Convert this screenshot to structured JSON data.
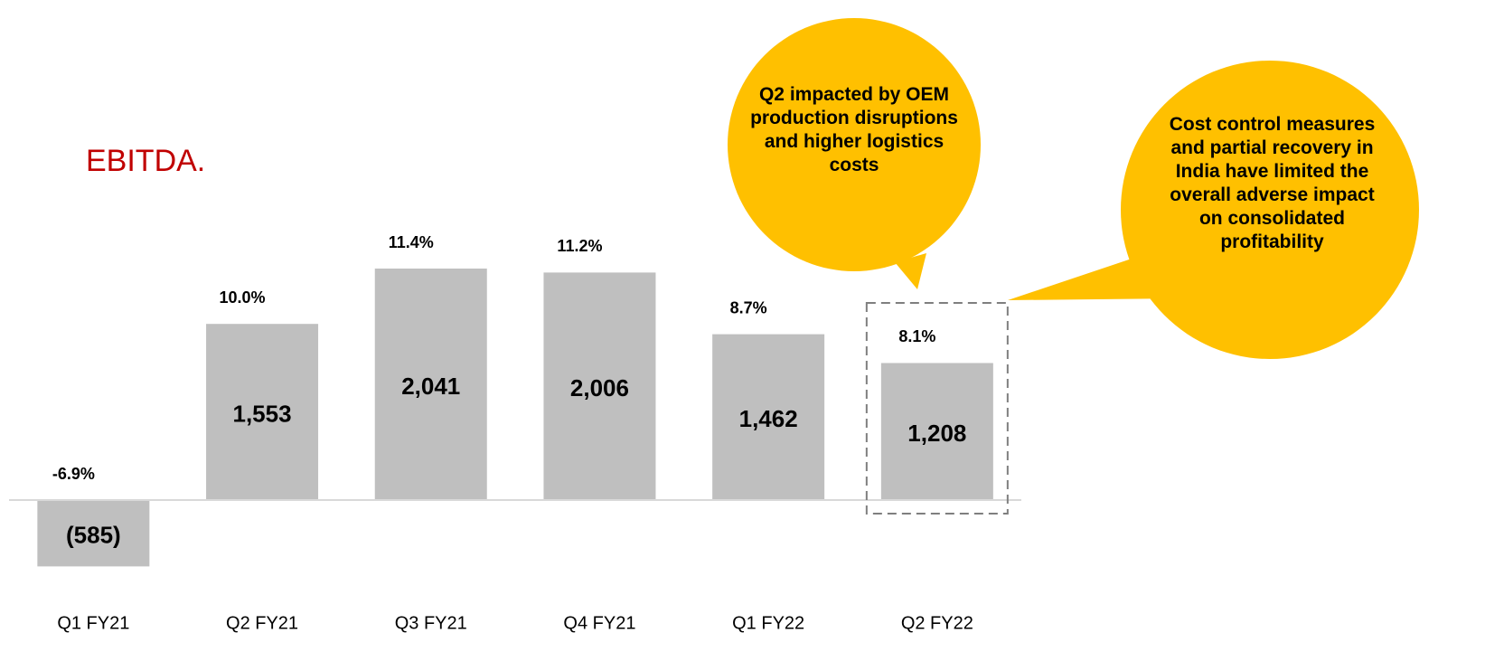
{
  "chart_data": {
    "type": "bar",
    "title": "EBITDA.",
    "categories": [
      "Q1 FY21",
      "Q2 FY21",
      "Q3 FY21",
      "Q4 FY21",
      "Q1 FY22",
      "Q2 FY22"
    ],
    "values": [
      -585,
      1553,
      2041,
      2006,
      1462,
      1208
    ],
    "value_labels": [
      "(585)",
      "1,553",
      "2,041",
      "2,006",
      "1,462",
      "1,208"
    ],
    "margin_labels": [
      "-6.9%",
      "10.0%",
      "11.4%",
      "11.2%",
      "8.7%",
      "8.1%"
    ],
    "color": "#bfbfbf",
    "callouts": [
      "Q2 impacted by OEM production disruptions and higher logistics costs",
      "Cost control measures and partial recovery in India have limited the overall adverse impact on consolidated profitability"
    ],
    "callout_color": "#ffc000"
  }
}
